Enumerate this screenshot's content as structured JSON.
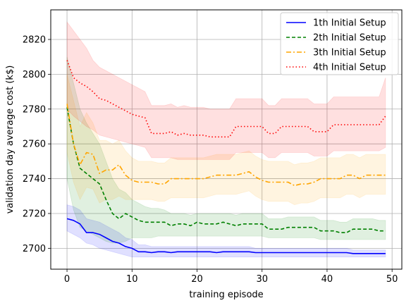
{
  "chart_data": {
    "type": "line",
    "xlabel": "training episode",
    "ylabel": "validation day average cost (k$)",
    "xlim": [
      -2.5,
      51.5
    ],
    "ylim": [
      2688,
      2837
    ],
    "xticks": [
      0,
      10,
      20,
      30,
      40,
      50
    ],
    "yticks": [
      2700,
      2720,
      2740,
      2760,
      2780,
      2800,
      2820
    ],
    "grid": true,
    "legend_position": "top-right",
    "x": [
      0,
      1,
      2,
      3,
      4,
      5,
      6,
      7,
      8,
      9,
      10,
      11,
      12,
      13,
      14,
      15,
      16,
      17,
      18,
      19,
      20,
      21,
      22,
      23,
      24,
      25,
      26,
      27,
      28,
      29,
      30,
      31,
      32,
      33,
      34,
      35,
      36,
      37,
      38,
      39,
      40,
      41,
      42,
      43,
      44,
      45,
      46,
      47,
      48,
      49
    ],
    "series": [
      {
        "name": "1th Initial Setup",
        "color": "#0000ff",
        "dash": "solid",
        "band_color": "#0000ff",
        "values": [
          2717,
          2716,
          2714,
          2709,
          2709,
          2708,
          2706,
          2704,
          2703,
          2701,
          2700,
          2698,
          2698,
          2697.5,
          2698,
          2698,
          2697.5,
          2698,
          2698,
          2698,
          2698,
          2698,
          2698,
          2697.5,
          2698,
          2698,
          2698,
          2698,
          2698,
          2697.5,
          2697.5,
          2697.5,
          2697.5,
          2697.5,
          2697.5,
          2697.5,
          2697.5,
          2697.5,
          2697.5,
          2697.5,
          2697.5,
          2697.5,
          2697.5,
          2697.5,
          2697,
          2697,
          2697,
          2697,
          2697,
          2697
        ],
        "lower": [
          2710,
          2708,
          2706,
          2703,
          2702,
          2700,
          2699,
          2698,
          2697,
          2696,
          2695,
          2695,
          2695,
          2695,
          2695,
          2695,
          2695,
          2695,
          2695,
          2695,
          2695,
          2695,
          2695,
          2695,
          2695,
          2695,
          2695,
          2695,
          2695,
          2695,
          2695,
          2695,
          2695,
          2695,
          2695,
          2695,
          2695,
          2695,
          2695,
          2695,
          2695,
          2695,
          2695,
          2695,
          2695,
          2695,
          2695,
          2695,
          2695,
          2695
        ],
        "upper": [
          2725,
          2724,
          2722,
          2717,
          2716,
          2715,
          2713,
          2711,
          2709,
          2706,
          2705,
          2702,
          2702,
          2701,
          2701,
          2701,
          2701,
          2701,
          2701,
          2701,
          2701,
          2701,
          2701,
          2701,
          2701,
          2701,
          2701,
          2701,
          2701,
          2700,
          2700,
          2700,
          2700,
          2700,
          2700,
          2700,
          2700,
          2700,
          2700,
          2700,
          2700,
          2700,
          2700,
          2700,
          2699,
          2699,
          2699,
          2699,
          2699,
          2699
        ]
      },
      {
        "name": "2th Initial Setup",
        "color": "#008000",
        "dash": "dashed",
        "band_color": "#008000",
        "values": [
          2781,
          2760,
          2746,
          2743,
          2740,
          2737,
          2728,
          2720,
          2717,
          2720,
          2718,
          2716,
          2715,
          2715,
          2715,
          2715,
          2713,
          2714,
          2714,
          2713,
          2715,
          2714,
          2714,
          2714,
          2715,
          2714,
          2713,
          2714,
          2714,
          2714,
          2714,
          2711,
          2711,
          2711,
          2712,
          2712,
          2712,
          2712,
          2712,
          2710,
          2710,
          2710,
          2709,
          2709,
          2711,
          2711,
          2711,
          2711,
          2710,
          2710
        ],
        "lower": [
          2740,
          2722,
          2712,
          2710,
          2708,
          2706,
          2704,
          2703,
          2703,
          2704,
          2706,
          2706,
          2706,
          2706,
          2707,
          2707,
          2707,
          2707,
          2707,
          2707,
          2707,
          2707,
          2707,
          2707,
          2707,
          2707,
          2707,
          2707,
          2707,
          2707,
          2707,
          2706,
          2706,
          2706,
          2706,
          2706,
          2706,
          2706,
          2706,
          2705,
          2705,
          2705,
          2705,
          2705,
          2705,
          2705,
          2705,
          2705,
          2705,
          2705
        ],
        "upper": [
          2810,
          2795,
          2780,
          2772,
          2766,
          2760,
          2750,
          2740,
          2734,
          2732,
          2728,
          2726,
          2724,
          2723,
          2723,
          2722,
          2720,
          2720,
          2720,
          2719,
          2720,
          2720,
          2720,
          2720,
          2720,
          2720,
          2719,
          2720,
          2720,
          2720,
          2720,
          2717,
          2717,
          2717,
          2718,
          2718,
          2718,
          2718,
          2718,
          2716,
          2716,
          2716,
          2715,
          2715,
          2717,
          2717,
          2717,
          2717,
          2716,
          2716
        ]
      },
      {
        "name": "3th Initial Setup",
        "color": "#ffa500",
        "dash": "dashdot",
        "band_color": "#ffa500",
        "values": [
          2783,
          2760,
          2748,
          2755,
          2754,
          2743,
          2745,
          2745,
          2748,
          2742,
          2739,
          2738,
          2738,
          2738,
          2737,
          2737,
          2740,
          2740,
          2740,
          2740,
          2740,
          2740,
          2741,
          2742,
          2742,
          2742,
          2742,
          2743,
          2744,
          2741,
          2739,
          2738,
          2738,
          2738,
          2738,
          2736,
          2737,
          2737,
          2738,
          2740,
          2740,
          2740,
          2740,
          2742,
          2742,
          2740,
          2742,
          2742,
          2742,
          2742
        ],
        "lower": [
          2755,
          2738,
          2728,
          2735,
          2734,
          2726,
          2728,
          2728,
          2730,
          2728,
          2728,
          2728,
          2728,
          2728,
          2727,
          2727,
          2729,
          2729,
          2729,
          2729,
          2729,
          2729,
          2730,
          2731,
          2731,
          2731,
          2731,
          2732,
          2733,
          2730,
          2728,
          2727,
          2727,
          2727,
          2727,
          2725,
          2726,
          2726,
          2727,
          2729,
          2729,
          2729,
          2729,
          2731,
          2731,
          2729,
          2731,
          2731,
          2731,
          2731
        ],
        "upper": [
          2800,
          2785,
          2770,
          2778,
          2772,
          2762,
          2762,
          2760,
          2762,
          2756,
          2752,
          2750,
          2750,
          2750,
          2749,
          2749,
          2752,
          2752,
          2752,
          2752,
          2752,
          2752,
          2753,
          2754,
          2754,
          2754,
          2754,
          2755,
          2756,
          2753,
          2751,
          2750,
          2750,
          2750,
          2750,
          2748,
          2749,
          2749,
          2750,
          2752,
          2752,
          2752,
          2752,
          2754,
          2754,
          2752,
          2754,
          2754,
          2754,
          2754
        ]
      },
      {
        "name": "4th Initial Setup",
        "color": "#ff0000",
        "dash": "dotted",
        "band_color": "#ff0000",
        "values": [
          2808,
          2798,
          2795,
          2793,
          2790,
          2786,
          2785,
          2783,
          2781,
          2779,
          2777,
          2776,
          2775,
          2766,
          2766,
          2766,
          2767,
          2765,
          2766,
          2765,
          2765,
          2765,
          2764,
          2764,
          2764,
          2764,
          2770,
          2770,
          2770,
          2770,
          2770,
          2766,
          2766,
          2770,
          2770,
          2770,
          2770,
          2770,
          2767,
          2767,
          2767,
          2771,
          2771,
          2771,
          2771,
          2771,
          2771,
          2771,
          2771,
          2776
        ],
        "lower": [
          2780,
          2776,
          2773,
          2770,
          2768,
          2765,
          2764,
          2763,
          2762,
          2761,
          2760,
          2759,
          2758,
          2752,
          2752,
          2752,
          2752,
          2751,
          2751,
          2751,
          2751,
          2751,
          2751,
          2751,
          2751,
          2751,
          2755,
          2755,
          2755,
          2755,
          2755,
          2752,
          2752,
          2755,
          2755,
          2755,
          2755,
          2755,
          2753,
          2753,
          2753,
          2756,
          2756,
          2756,
          2756,
          2756,
          2756,
          2756,
          2756,
          2758
        ],
        "upper": [
          2830,
          2825,
          2820,
          2815,
          2808,
          2804,
          2802,
          2800,
          2798,
          2796,
          2794,
          2792,
          2790,
          2782,
          2782,
          2782,
          2783,
          2781,
          2782,
          2781,
          2781,
          2781,
          2780,
          2780,
          2780,
          2780,
          2786,
          2786,
          2786,
          2786,
          2786,
          2782,
          2782,
          2786,
          2786,
          2786,
          2786,
          2786,
          2783,
          2783,
          2783,
          2787,
          2787,
          2787,
          2787,
          2787,
          2787,
          2787,
          2787,
          2798
        ]
      }
    ]
  }
}
